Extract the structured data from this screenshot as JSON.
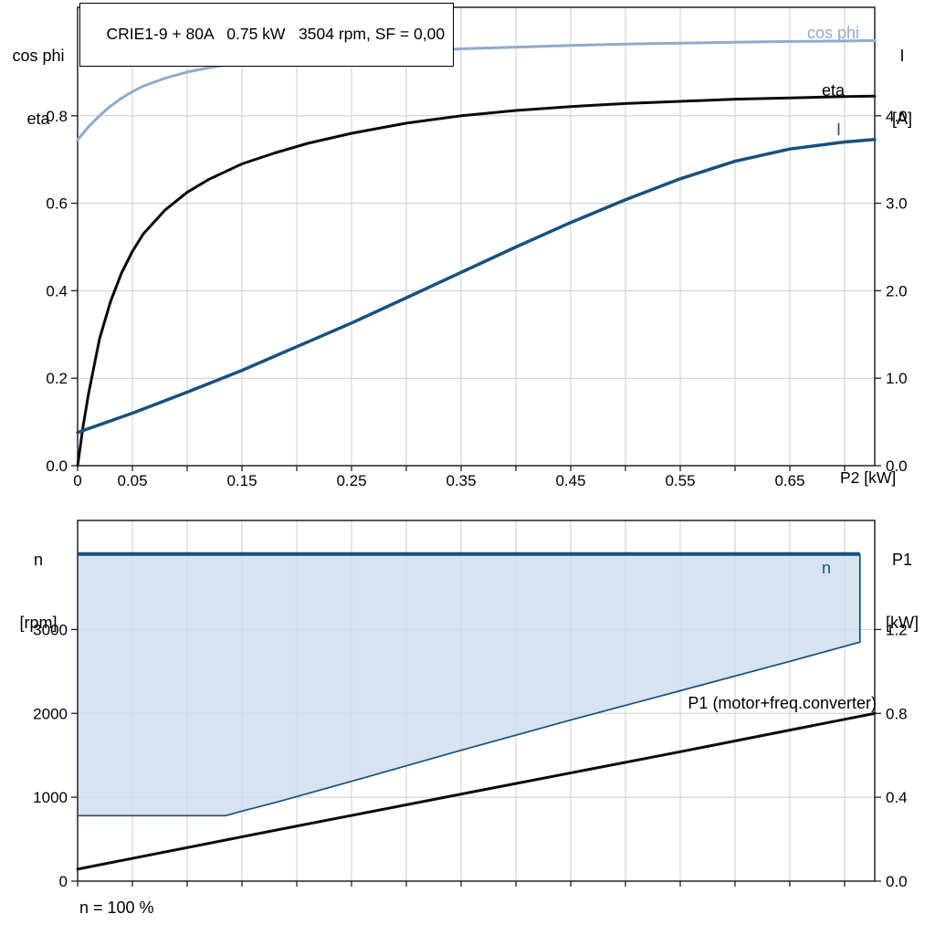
{
  "title_box": {
    "text": "CRIE1-9 + 80A   0.75 kW   3504 rpm, SF = 0,00"
  },
  "footer": {
    "text": "n = 100 %"
  },
  "axis_labels": {
    "top_left_line1": "cos phi",
    "top_left_line2": "eta",
    "top_right_line1": "I",
    "top_right_line2": "[A]",
    "x_label": "P2 [kW]",
    "bottom_left_line1": "n",
    "bottom_left_line2": "[rpm]",
    "bottom_right_line1": "P1",
    "bottom_right_line2": "[kW]"
  },
  "curve_labels": {
    "cos_phi": "cos phi",
    "eta": "eta",
    "current": "I",
    "speed": "n",
    "p1": "P1 (motor+freq.converter)"
  },
  "colors": {
    "cos_phi": "#8fabcc",
    "dark_blue": "#17507e",
    "black": "#0a0a0a",
    "grid": "#cccccc",
    "frame": "#222222",
    "region_fill": "#cddcee"
  },
  "chart_data": [
    {
      "type": "line",
      "title": "CRIE1-9 + 80A   0.75 kW   3504 rpm, SF = 0,00",
      "xlabel": "P2 [kW]",
      "ylabel_left": "cos phi, eta",
      "ylabel_right": "I [A]",
      "xlim": [
        0,
        0.7275
      ],
      "ylim_left": [
        0,
        1.048
      ],
      "ylim_right": [
        0,
        5.24
      ],
      "xgrid": [
        0.05,
        0.1,
        0.15,
        0.2,
        0.25,
        0.3,
        0.35,
        0.4,
        0.45,
        0.5,
        0.55,
        0.6,
        0.65,
        0.7
      ],
      "xtick_values": [
        0,
        0.05,
        0.15,
        0.25,
        0.35,
        0.45,
        0.55,
        0.65
      ],
      "xtick_labels": [
        "0",
        "0.05",
        "0.15",
        "0.25",
        "0.35",
        "0.45",
        "0.55",
        "0.65"
      ],
      "ytick_left_values": [
        0,
        0.2,
        0.4,
        0.6,
        0.8
      ],
      "ytick_left_labels": [
        "0.0",
        "0.2",
        "0.4",
        "0.6",
        "0.8"
      ],
      "ygrid_left": [
        0.2,
        0.4,
        0.6,
        0.8
      ],
      "ytick_right_values": [
        0,
        1,
        2,
        3,
        4
      ],
      "ytick_right_labels": [
        "0.0",
        "1.0",
        "2.0",
        "3.0",
        "4.0"
      ],
      "series": [
        {
          "name": "cos phi",
          "axis": "left",
          "color_key": "cos_phi",
          "width": 3,
          "points": [
            [
              0,
              0.745
            ],
            [
              0.01,
              0.775
            ],
            [
              0.02,
              0.8
            ],
            [
              0.03,
              0.822
            ],
            [
              0.04,
              0.84
            ],
            [
              0.05,
              0.855
            ],
            [
              0.06,
              0.868
            ],
            [
              0.08,
              0.886
            ],
            [
              0.1,
              0.9
            ],
            [
              0.12,
              0.91
            ],
            [
              0.15,
              0.921
            ],
            [
              0.18,
              0.929
            ],
            [
              0.21,
              0.935
            ],
            [
              0.25,
              0.941
            ],
            [
              0.3,
              0.948
            ],
            [
              0.35,
              0.953
            ],
            [
              0.4,
              0.957
            ],
            [
              0.45,
              0.961
            ],
            [
              0.5,
              0.964
            ],
            [
              0.55,
              0.966
            ],
            [
              0.6,
              0.968
            ],
            [
              0.65,
              0.97
            ],
            [
              0.7,
              0.971
            ],
            [
              0.7275,
              0.972
            ]
          ]
        },
        {
          "name": "eta",
          "axis": "left",
          "color_key": "black",
          "width": 3,
          "points": [
            [
              0,
              0
            ],
            [
              0.005,
              0.09
            ],
            [
              0.01,
              0.165
            ],
            [
              0.02,
              0.29
            ],
            [
              0.03,
              0.375
            ],
            [
              0.04,
              0.44
            ],
            [
              0.05,
              0.49
            ],
            [
              0.06,
              0.53
            ],
            [
              0.08,
              0.585
            ],
            [
              0.1,
              0.625
            ],
            [
              0.12,
              0.655
            ],
            [
              0.15,
              0.69
            ],
            [
              0.18,
              0.715
            ],
            [
              0.21,
              0.737
            ],
            [
              0.25,
              0.76
            ],
            [
              0.3,
              0.783
            ],
            [
              0.35,
              0.8
            ],
            [
              0.4,
              0.812
            ],
            [
              0.45,
              0.821
            ],
            [
              0.5,
              0.828
            ],
            [
              0.55,
              0.833
            ],
            [
              0.6,
              0.838
            ],
            [
              0.65,
              0.841
            ],
            [
              0.7,
              0.844
            ],
            [
              0.7275,
              0.845
            ]
          ]
        },
        {
          "name": "I",
          "axis": "right",
          "color_key": "dark_blue",
          "width": 3.5,
          "points": [
            [
              0,
              0.38
            ],
            [
              0.05,
              0.6
            ],
            [
              0.1,
              0.84
            ],
            [
              0.15,
              1.09
            ],
            [
              0.2,
              1.36
            ],
            [
              0.25,
              1.63
            ],
            [
              0.3,
              1.92
            ],
            [
              0.35,
              2.21
            ],
            [
              0.4,
              2.5
            ],
            [
              0.45,
              2.78
            ],
            [
              0.5,
              3.04
            ],
            [
              0.55,
              3.28
            ],
            [
              0.6,
              3.48
            ],
            [
              0.65,
              3.62
            ],
            [
              0.7,
              3.7
            ],
            [
              0.7275,
              3.73
            ]
          ]
        }
      ]
    },
    {
      "type": "line+area",
      "title": "",
      "xlabel": "",
      "ylabel_left": "n [rpm]",
      "ylabel_right": "P1 [kW]",
      "xlim": [
        0,
        0.7275
      ],
      "ylim_left": [
        0,
        4300
      ],
      "ylim_right": [
        0,
        1.72
      ],
      "xgrid": [
        0.05,
        0.1,
        0.15,
        0.2,
        0.25,
        0.3,
        0.35,
        0.4,
        0.45,
        0.5,
        0.55,
        0.6,
        0.65,
        0.7
      ],
      "xtick_values": [
        0,
        0.05,
        0.15,
        0.25,
        0.35,
        0.45,
        0.55,
        0.65
      ],
      "xtick_labels": [],
      "ytick_left_values": [
        0,
        1000,
        2000,
        3000
      ],
      "ytick_left_labels": [
        "0",
        "1000",
        "2000",
        "3000"
      ],
      "ygrid_left": [
        1000,
        2000,
        3000
      ],
      "ytick_right_values": [
        0,
        0.4,
        0.8,
        1.2
      ],
      "ytick_right_labels": [
        "0.0",
        "0.4",
        "0.8",
        "1.2"
      ],
      "region": {
        "name": "speed-envelope",
        "note": "n = 100 %",
        "fill_key": "region_fill",
        "fill_opacity": 0.8,
        "top_speed_rpm": 3900,
        "min_speed_rpm": 780,
        "polygon": [
          [
            0,
            3900
          ],
          [
            0.714,
            3900
          ],
          [
            0.714,
            2850
          ],
          [
            0.65,
            2620
          ],
          [
            0.55,
            2270
          ],
          [
            0.45,
            1920
          ],
          [
            0.35,
            1560
          ],
          [
            0.25,
            1190
          ],
          [
            0.18,
            935
          ],
          [
            0.15,
            835
          ],
          [
            0.135,
            780
          ],
          [
            0,
            780
          ]
        ],
        "top_edge": [
          [
            0,
            3900
          ],
          [
            0.714,
            3900
          ]
        ],
        "boundary": [
          [
            0.714,
            3900
          ],
          [
            0.714,
            2850
          ],
          [
            0.65,
            2620
          ],
          [
            0.55,
            2270
          ],
          [
            0.45,
            1920
          ],
          [
            0.35,
            1560
          ],
          [
            0.25,
            1190
          ],
          [
            0.18,
            935
          ],
          [
            0.15,
            835
          ],
          [
            0.135,
            780
          ],
          [
            0,
            780
          ]
        ]
      },
      "series": [
        {
          "name": "P1 (motor+freq.converter)",
          "axis": "right",
          "color_key": "black",
          "width": 3,
          "points": [
            [
              0,
              0.057
            ],
            [
              0.18,
              0.242
            ],
            [
              0.36,
              0.425
            ],
            [
              0.55,
              0.617
            ],
            [
              0.7275,
              0.8
            ]
          ]
        }
      ]
    }
  ]
}
